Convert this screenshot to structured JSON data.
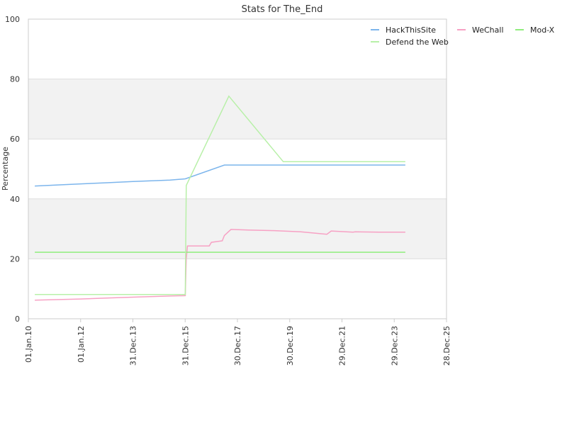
{
  "chart_data": {
    "type": "line",
    "title": "Stats for The_End",
    "xlabel": "",
    "ylabel": "Percentage",
    "ylim": [
      0,
      100
    ],
    "xlim": [
      "2010-01-01",
      "2025-12-28"
    ],
    "y_ticks": [
      "0",
      "20",
      "40",
      "60",
      "80",
      "100"
    ],
    "x_ticks": [
      {
        "date": "2010-01-01",
        "label": "01.Jan.10"
      },
      {
        "date": "2012-01-01",
        "label": "01.Jan.12"
      },
      {
        "date": "2013-12-31",
        "label": "31.Dec.13"
      },
      {
        "date": "2015-12-31",
        "label": "31.Dec.15"
      },
      {
        "date": "2017-12-30",
        "label": "30.Dec.17"
      },
      {
        "date": "2019-12-30",
        "label": "30.Dec.19"
      },
      {
        "date": "2021-12-29",
        "label": "29.Dec.21"
      },
      {
        "date": "2023-12-29",
        "label": "29.Dec.23"
      },
      {
        "date": "2025-12-28",
        "label": "28.Dec.25"
      }
    ],
    "grid": true,
    "alternating_bands": [
      [
        20,
        40
      ],
      [
        60,
        80
      ]
    ],
    "legend_position": "top-right",
    "series": [
      {
        "name": "HackThisSite",
        "color": "#7cb5ec",
        "points": [
          [
            "2010-04-01",
            44.3
          ],
          [
            "2012-01-01",
            45.0
          ],
          [
            "2013-01-01",
            45.4
          ],
          [
            "2014-01-01",
            45.8
          ],
          [
            "2015-06-01",
            46.3
          ],
          [
            "2016-01-01",
            46.7
          ],
          [
            "2017-07-01",
            51.3
          ],
          [
            "2019-01-01",
            51.3
          ],
          [
            "2021-01-01",
            51.3
          ],
          [
            "2024-06-01",
            51.3
          ]
        ]
      },
      {
        "name": "WeChall",
        "color": "#f7a1c4",
        "points": [
          [
            "2010-04-01",
            6.2
          ],
          [
            "2012-01-01",
            6.6
          ],
          [
            "2013-01-01",
            6.9
          ],
          [
            "2014-01-01",
            7.2
          ],
          [
            "2015-06-01",
            7.6
          ],
          [
            "2016-01-01",
            7.7
          ],
          [
            "2016-01-15",
            20.0
          ],
          [
            "2016-02-01",
            24.3
          ],
          [
            "2016-12-01",
            24.3
          ],
          [
            "2017-01-01",
            25.5
          ],
          [
            "2017-06-01",
            26.0
          ],
          [
            "2017-07-01",
            27.8
          ],
          [
            "2017-10-01",
            29.8
          ],
          [
            "2018-06-01",
            29.6
          ],
          [
            "2019-06-01",
            29.4
          ],
          [
            "2020-06-01",
            29.0
          ],
          [
            "2021-06-01",
            28.2
          ],
          [
            "2021-08-01",
            29.3
          ],
          [
            "2022-06-01",
            28.9
          ],
          [
            "2022-07-01",
            29.0
          ],
          [
            "2023-06-01",
            28.9
          ],
          [
            "2024-06-01",
            28.9
          ]
        ]
      },
      {
        "name": "Mod-X",
        "color": "#90ed7d",
        "points": [
          [
            "2010-04-01",
            22.2
          ],
          [
            "2024-06-01",
            22.2
          ]
        ]
      },
      {
        "name": "Defend the Web",
        "color": "#b8f0a8",
        "points": [
          [
            "2010-04-01",
            8.1
          ],
          [
            "2016-01-01",
            8.1
          ],
          [
            "2016-01-15",
            44.5
          ],
          [
            "2017-09-01",
            74.3
          ],
          [
            "2019-10-01",
            52.4
          ],
          [
            "2024-06-01",
            52.4
          ]
        ]
      }
    ]
  }
}
